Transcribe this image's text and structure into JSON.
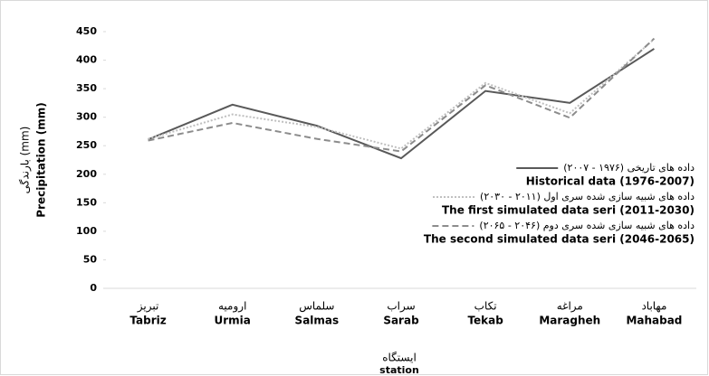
{
  "chart_data": {
    "type": "line",
    "y_label_fa": "بارندگی (mm)",
    "y_label": "Precipitation (mm)",
    "x_label_fa": "ایستگاه",
    "x_label": "station",
    "categories_fa": [
      "تبریز",
      "ارومیه",
      "سلماس",
      "سراب",
      "تکاب",
      "مراغه",
      "مهاباد"
    ],
    "categories": [
      "Tabriz",
      "Urmia",
      "Salmas",
      "Sarab",
      "Tekab",
      "Maragheh",
      "Mahabad"
    ],
    "series": [
      {
        "name_fa": "داده های تاریخی (۱۹۷۶ - ۲۰۰۷)",
        "name": "Historical data (1976-2007)",
        "color": "#595959",
        "dash": "solid",
        "values": [
          261,
          322,
          285,
          228,
          346,
          325,
          420
        ]
      },
      {
        "name_fa": "داده های شبیه سازی شده سری اول (۲۰۱۱ - ۲۰۳۰)",
        "name": "The first simulated data seri (2011-2030)",
        "color": "#bfbfbf",
        "dash": "dotted",
        "values": [
          262,
          305,
          283,
          245,
          360,
          307,
          437
        ]
      },
      {
        "name_fa": "داده های شبیه سازی شده سری دوم (۲۰۴۶ - ۲۰۶۵)",
        "name": "The second simulated data seri (2046-2065)",
        "color": "#8c8c8c",
        "dash": "dashed",
        "values": [
          259,
          290,
          262,
          240,
          356,
          299,
          438
        ]
      }
    ],
    "ylim": [
      0,
      450
    ],
    "yticks": [
      0,
      50,
      100,
      150,
      200,
      250,
      300,
      350,
      400,
      450
    ],
    "grid": false,
    "legend": "right"
  }
}
